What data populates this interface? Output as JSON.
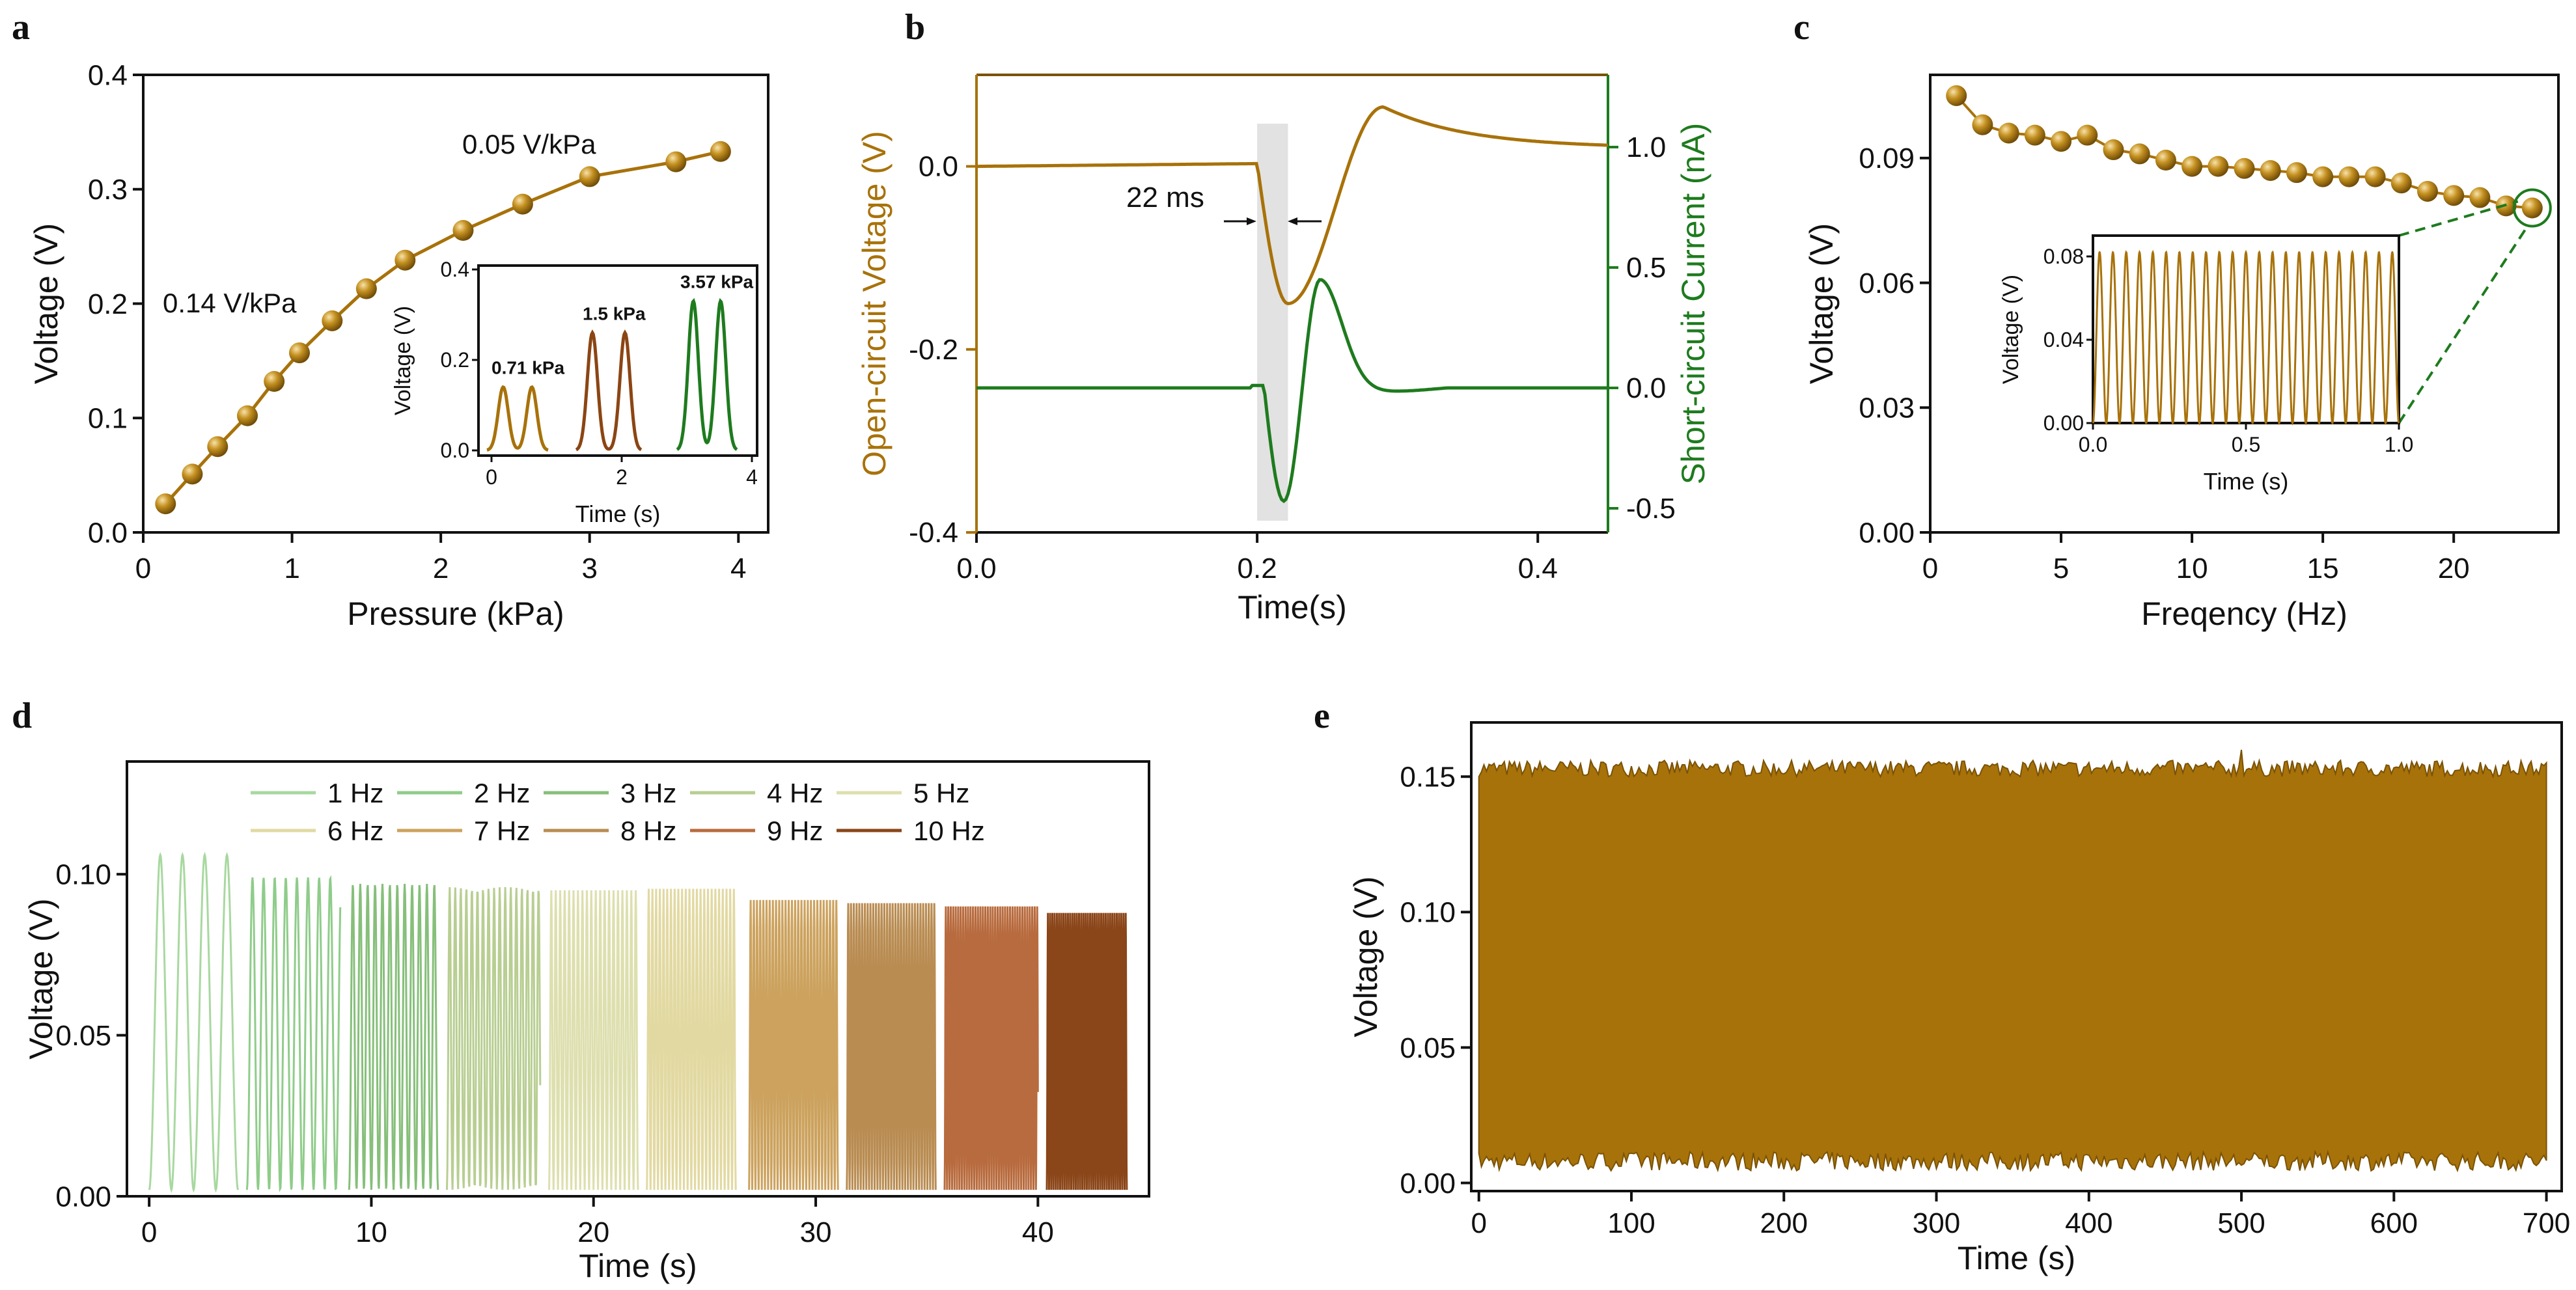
{
  "colors": {
    "gold": "#A8720A",
    "gold_dark": "#7A5205",
    "brown": "#8B4513",
    "green": "#1E7B1E",
    "axis": "#111111",
    "shade": "#D8D8D8"
  },
  "chart_data": [
    {
      "id": "a",
      "type": "scatter",
      "panel_label": "a",
      "xlabel": "Pressure (kPa)",
      "ylabel": "Voltage (V)",
      "xlim": [
        0,
        4.2
      ],
      "ylim": [
        0,
        0.4
      ],
      "xticks": [
        "0",
        "1",
        "2",
        "3",
        "4"
      ],
      "yticks": [
        "0.0",
        "0.1",
        "0.2",
        "0.3",
        "0.4"
      ],
      "series": [
        {
          "name": "Voltage",
          "x": [
            0.15,
            0.33,
            0.5,
            0.7,
            0.88,
            1.05,
            1.27,
            1.5,
            1.76,
            2.15,
            2.55,
            3.0,
            3.58,
            3.88
          ],
          "y": [
            0.025,
            0.051,
            0.075,
            0.102,
            0.132,
            0.157,
            0.185,
            0.213,
            0.238,
            0.264,
            0.287,
            0.311,
            0.324,
            0.333
          ]
        }
      ],
      "annotations": [
        "0.14 V/kPa",
        "0.05 V/kPa"
      ],
      "inset": {
        "xlabel": "Time (s)",
        "ylabel": "Voltage (V)",
        "xlim": [
          0,
          4
        ],
        "ylim": [
          0,
          0.4
        ],
        "xticks": [
          "0",
          "2",
          "4"
        ],
        "yticks": [
          "0.0",
          "0.2",
          "0.4"
        ],
        "series": [
          {
            "name": "0.71 kPa",
            "peak": 0.14,
            "peak_times": [
              0.18,
              0.62
            ]
          },
          {
            "name": "1.5 kPa",
            "peak": 0.26,
            "peak_times": [
              1.55,
              2.05
            ]
          },
          {
            "name": "3.57 kPa",
            "peak": 0.33,
            "peak_times": [
              3.1,
              3.52
            ]
          }
        ]
      }
    },
    {
      "id": "b",
      "type": "line",
      "panel_label": "b",
      "xlabel": "Time(s)",
      "ylabel": "Open-circuit Voltage (V)",
      "y2label": "Short-circuit Current (nA)",
      "xlim": [
        0,
        0.45
      ],
      "ylim": [
        -0.4,
        0.1
      ],
      "y2lim": [
        -0.6,
        1.3
      ],
      "xticks": [
        "0.0",
        "0.2",
        "0.4"
      ],
      "yticks": [
        "0.0",
        "-0.2",
        "-0.4"
      ],
      "y2ticks": [
        "1.0",
        "0.5",
        "0.0",
        "-0.5"
      ],
      "series": [
        {
          "name": "Open-circuit Voltage",
          "axis": "left",
          "baseline": 0.0,
          "min": -0.15,
          "min_time": 0.222,
          "max": 0.065,
          "max_time": 0.29,
          "end": 0.02
        },
        {
          "name": "Short-circuit Current",
          "axis": "right",
          "baseline": 0.0,
          "min": -0.47,
          "min_time": 0.219,
          "max": 0.45,
          "max_time": 0.245,
          "end": 0.0
        }
      ],
      "shaded_region": [
        0.2,
        0.222
      ],
      "annotations": [
        "22 ms"
      ]
    },
    {
      "id": "c",
      "type": "scatter",
      "panel_label": "c",
      "xlabel": "Freqency (Hz)",
      "ylabel": "Voltage (V)",
      "xlim": [
        0,
        24
      ],
      "ylim": [
        0,
        0.11
      ],
      "xticks": [
        "0",
        "5",
        "10",
        "15",
        "20"
      ],
      "yticks": [
        "0.00",
        "0.03",
        "0.06",
        "0.09"
      ],
      "series": [
        {
          "name": "Voltage",
          "x": [
            1,
            2,
            3,
            4,
            5,
            6,
            7,
            8,
            9,
            10,
            11,
            12,
            13,
            14,
            15,
            16,
            17,
            18,
            19,
            20,
            21,
            22,
            23
          ],
          "y": [
            0.105,
            0.098,
            0.096,
            0.0955,
            0.094,
            0.0955,
            0.092,
            0.091,
            0.0895,
            0.088,
            0.088,
            0.0875,
            0.087,
            0.0865,
            0.0855,
            0.0855,
            0.0855,
            0.084,
            0.082,
            0.081,
            0.0805,
            0.0785,
            0.078
          ]
        }
      ],
      "inset": {
        "xlabel": "Time (s)",
        "ylabel": "Voltage (V)",
        "xlim": [
          0,
          1
        ],
        "ylim": [
          0,
          0.09
        ],
        "xticks": [
          "0.0",
          "0.5",
          "1.0"
        ],
        "yticks": [
          "0.00",
          "0.04",
          "0.08"
        ],
        "frequency_hz": 23,
        "peak": 0.082
      }
    },
    {
      "id": "d",
      "type": "line",
      "panel_label": "d",
      "xlabel": "Time (s)",
      "ylabel": "Voltage (V)",
      "xlim": [
        -1,
        45
      ],
      "ylim": [
        0,
        0.135
      ],
      "xticks": [
        "0",
        "10",
        "20",
        "30",
        "40"
      ],
      "yticks": [
        "0.00",
        "0.05",
        "0.10"
      ],
      "series": [
        {
          "name": "1 Hz",
          "color": "#A8D8A0",
          "t_start": 0.0,
          "t_end": 4.0,
          "peak": 0.106
        },
        {
          "name": "2 Hz",
          "color": "#8FCC8A",
          "t_start": 4.4,
          "t_end": 8.6,
          "peak": 0.099
        },
        {
          "name": "3 Hz",
          "color": "#86BF7A",
          "t_start": 9.0,
          "t_end": 13.0,
          "peak": 0.097
        },
        {
          "name": "4 Hz",
          "color": "#B8CE92",
          "t_start": 13.4,
          "t_end": 17.6,
          "peak": 0.096
        },
        {
          "name": "5 Hz",
          "color": "#DDDFAE",
          "t_start": 18.0,
          "t_end": 22.0,
          "peak": 0.095
        },
        {
          "name": "6 Hz",
          "color": "#E2D9A2",
          "t_start": 22.4,
          "t_end": 26.4,
          "peak": 0.0955
        },
        {
          "name": "7 Hz",
          "color": "#CCA25E",
          "t_start": 27.0,
          "t_end": 31.0,
          "peak": 0.092
        },
        {
          "name": "8 Hz",
          "color": "#B98C52",
          "t_start": 31.4,
          "t_end": 35.4,
          "peak": 0.091
        },
        {
          "name": "9 Hz",
          "color": "#B86B3E",
          "t_start": 35.8,
          "t_end": 40.0,
          "peak": 0.09
        },
        {
          "name": "10 Hz",
          "color": "#8A4518",
          "t_start": 40.4,
          "t_end": 44.0,
          "peak": 0.088
        }
      ]
    },
    {
      "id": "e",
      "type": "area",
      "panel_label": "e",
      "xlabel": "Time (s)",
      "ylabel": "Voltage (V)",
      "xlim": [
        -5,
        710
      ],
      "ylim": [
        -0.003,
        0.17
      ],
      "xticks": [
        "0",
        "100",
        "200",
        "300",
        "400",
        "500",
        "600",
        "700"
      ],
      "yticks": [
        "0.00",
        "0.05",
        "0.10",
        "0.15"
      ],
      "series": [
        {
          "name": "Voltage",
          "t_start": 0,
          "t_end": 700,
          "upper_mean": 0.153,
          "lower_mean": 0.008
        }
      ]
    }
  ]
}
